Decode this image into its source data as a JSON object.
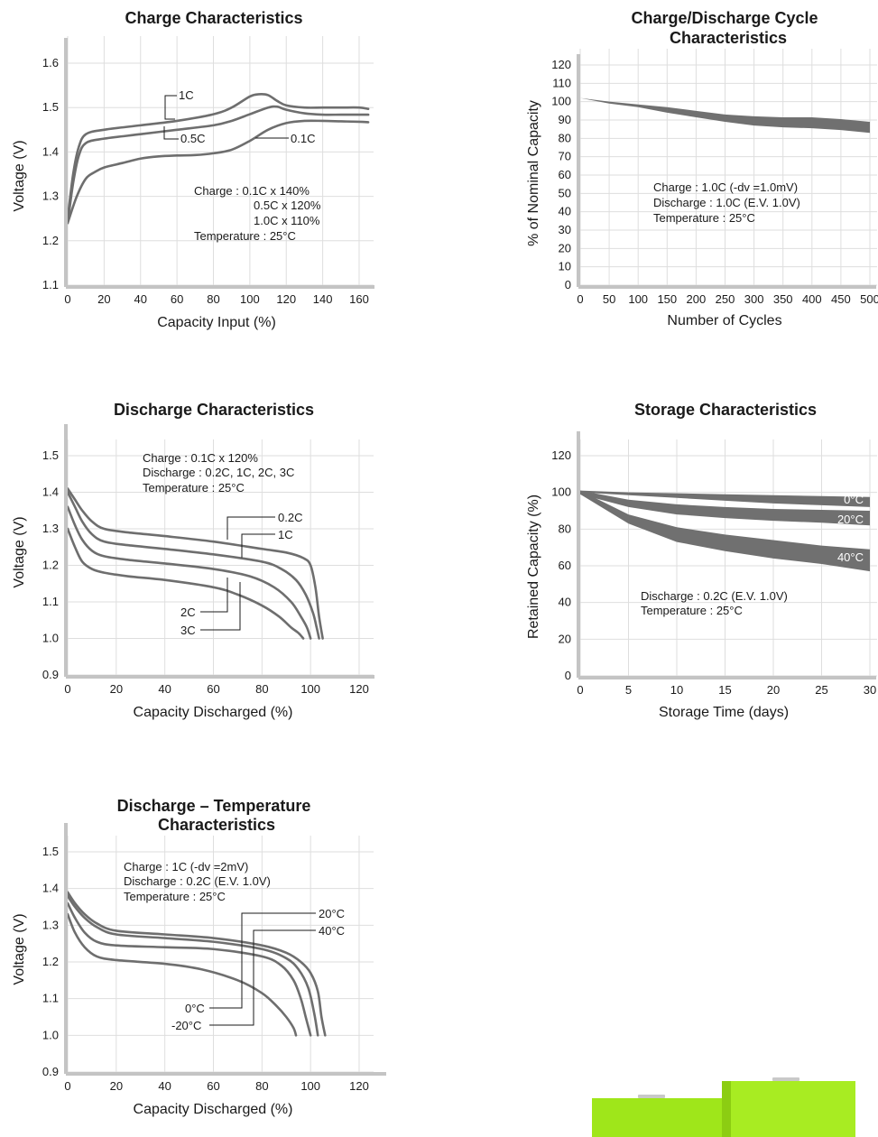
{
  "chart_data": [
    {
      "id": "charge",
      "type": "line",
      "title": [
        "Charge Characteristics"
      ],
      "xlabel": "Capacity Input (%)",
      "ylabel": "Voltage (V)",
      "xlim": [
        0,
        160
      ],
      "ylim": [
        1.1,
        1.6
      ],
      "xticks": [
        0,
        20,
        40,
        60,
        80,
        100,
        120,
        140,
        160
      ],
      "yticks": [
        1.1,
        1.2,
        1.3,
        1.4,
        1.5,
        1.6
      ],
      "xtick_labels": [
        "0",
        "20",
        "40",
        "60",
        "80",
        "100",
        "120",
        "140",
        "160"
      ],
      "ytick_labels": [
        "1.1",
        "1.2",
        "1.3",
        "1.4",
        "1.5",
        "1.6"
      ],
      "grid": true,
      "notes": [
        "Charge : 0.1C x 140%",
        "0.5C x 120%",
        "1.0C x 110%",
        "Temperature : 25°C"
      ],
      "series": [
        {
          "name": "1C",
          "x": [
            0,
            3,
            6,
            10,
            20,
            40,
            60,
            80,
            90,
            100,
            105,
            110,
            115,
            120,
            130,
            140,
            150,
            160,
            165
          ],
          "y": [
            1.25,
            1.35,
            1.41,
            1.44,
            1.45,
            1.46,
            1.47,
            1.485,
            1.5,
            1.525,
            1.53,
            1.528,
            1.515,
            1.505,
            1.5,
            1.5,
            1.5,
            1.5,
            1.497
          ]
        },
        {
          "name": "0.5C",
          "x": [
            0,
            3,
            6,
            10,
            20,
            40,
            60,
            80,
            90,
            100,
            110,
            115,
            120,
            130,
            140,
            150,
            160,
            165
          ],
          "y": [
            1.24,
            1.33,
            1.39,
            1.42,
            1.43,
            1.44,
            1.45,
            1.46,
            1.47,
            1.485,
            1.5,
            1.502,
            1.495,
            1.487,
            1.484,
            1.484,
            1.484,
            1.484
          ]
        },
        {
          "name": "0.1C",
          "x": [
            0,
            5,
            10,
            15,
            20,
            30,
            40,
            50,
            60,
            70,
            80,
            90,
            100,
            110,
            120,
            130,
            140,
            150,
            160,
            165
          ],
          "y": [
            1.24,
            1.3,
            1.34,
            1.355,
            1.365,
            1.375,
            1.385,
            1.39,
            1.392,
            1.393,
            1.397,
            1.405,
            1.425,
            1.45,
            1.465,
            1.47,
            1.47,
            1.469,
            1.468,
            1.467
          ]
        }
      ]
    },
    {
      "id": "cycle",
      "type": "area",
      "title": [
        "Charge/Discharge Cycle",
        "Characteristics"
      ],
      "xlabel": "Number of Cycles",
      "ylabel": "% of Nominal Capacity",
      "xlim": [
        0,
        500
      ],
      "ylim": [
        0,
        120
      ],
      "xticks": [
        0,
        50,
        100,
        150,
        200,
        250,
        300,
        350,
        400,
        450,
        500
      ],
      "yticks": [
        0,
        10,
        20,
        30,
        40,
        50,
        60,
        70,
        80,
        90,
        100,
        110,
        120
      ],
      "xtick_labels": [
        "0",
        "50",
        "100",
        "150",
        "200",
        "250",
        "300",
        "350",
        "400",
        "450",
        "500"
      ],
      "ytick_labels": [
        "0",
        "10",
        "20",
        "30",
        "40",
        "50",
        "60",
        "70",
        "80",
        "90",
        "100",
        "110",
        "120"
      ],
      "grid": true,
      "notes": [
        "Charge : 1.0C (-dv =1.0mV)",
        "Discharge : 1.0C (E.V. 1.0V)",
        "Temperature : 25°C"
      ],
      "series": [
        {
          "name": "",
          "x": [
            0,
            50,
            100,
            150,
            200,
            250,
            300,
            350,
            400,
            450,
            500
          ],
          "upper": [
            102,
            100,
            98.5,
            97,
            95,
            93,
            92,
            91.5,
            91.5,
            90.5,
            89
          ],
          "lower": [
            102,
            99,
            97,
            94,
            91.5,
            89,
            87,
            86,
            85.5,
            84.5,
            83
          ]
        }
      ]
    },
    {
      "id": "discharge",
      "type": "line",
      "title": [
        "Discharge Characteristics"
      ],
      "xlabel": "Capacity Discharged (%)",
      "ylabel": "Voltage (V)",
      "xlim": [
        0,
        120
      ],
      "ylim": [
        0.9,
        1.5
      ],
      "xticks": [
        0,
        20,
        40,
        60,
        80,
        100,
        120
      ],
      "yticks": [
        0.9,
        1.0,
        1.1,
        1.2,
        1.3,
        1.4,
        1.5
      ],
      "xtick_labels": [
        "0",
        "20",
        "40",
        "60",
        "80",
        "100",
        "120"
      ],
      "ytick_labels": [
        "0.9",
        "1.0",
        "1.1",
        "1.2",
        "1.3",
        "1.4",
        "1.5"
      ],
      "grid": true,
      "notes": [
        "Charge : 0.1C x 120%",
        "Discharge : 0.2C, 1C, 2C, 3C",
        "Temperature : 25°C"
      ],
      "series": [
        {
          "name": "0.2C",
          "x": [
            0,
            3,
            6,
            10,
            15,
            25,
            40,
            60,
            80,
            90,
            97,
            100,
            102,
            103.5,
            105
          ],
          "y": [
            1.41,
            1.38,
            1.35,
            1.32,
            1.3,
            1.29,
            1.28,
            1.265,
            1.245,
            1.235,
            1.22,
            1.2,
            1.14,
            1.06,
            1.0
          ]
        },
        {
          "name": "1C",
          "x": [
            0,
            3,
            6,
            10,
            15,
            25,
            40,
            60,
            80,
            88,
            94,
            98,
            101,
            102.5,
            103.5
          ],
          "y": [
            1.4,
            1.36,
            1.32,
            1.285,
            1.265,
            1.255,
            1.245,
            1.23,
            1.21,
            1.19,
            1.16,
            1.12,
            1.07,
            1.03,
            1.0
          ]
        },
        {
          "name": "2C",
          "x": [
            0,
            3,
            6,
            10,
            15,
            25,
            40,
            60,
            75,
            85,
            92,
            96,
            98.5,
            100
          ],
          "y": [
            1.36,
            1.31,
            1.27,
            1.24,
            1.225,
            1.215,
            1.205,
            1.19,
            1.17,
            1.14,
            1.1,
            1.06,
            1.03,
            1.0
          ]
        },
        {
          "name": "3C",
          "x": [
            0,
            3,
            6,
            10,
            15,
            25,
            40,
            60,
            70,
            80,
            87,
            92,
            95,
            97
          ],
          "y": [
            1.3,
            1.25,
            1.21,
            1.19,
            1.18,
            1.17,
            1.16,
            1.14,
            1.12,
            1.09,
            1.06,
            1.03,
            1.015,
            1.0
          ]
        }
      ]
    },
    {
      "id": "storage",
      "type": "area",
      "title": [
        "Storage Characteristics"
      ],
      "xlabel": "Storage Time (days)",
      "ylabel": "Retained Capacity (%)",
      "xlim": [
        0,
        30
      ],
      "ylim": [
        0,
        120
      ],
      "xticks": [
        0,
        5,
        10,
        15,
        20,
        25,
        30
      ],
      "yticks": [
        0,
        20,
        40,
        60,
        80,
        100,
        120
      ],
      "xtick_labels": [
        "0",
        "5",
        "10",
        "15",
        "20",
        "25",
        "30"
      ],
      "ytick_labels": [
        "0",
        "20",
        "40",
        "60",
        "80",
        "100",
        "120"
      ],
      "grid": true,
      "notes": [
        "Discharge : 0.2C (E.V. 1.0V)",
        "Temperature : 25°C"
      ],
      "series": [
        {
          "name": "0°C",
          "x": [
            0,
            5,
            10,
            15,
            20,
            25,
            30
          ],
          "upper": [
            101,
            100,
            99.5,
            99,
            98.5,
            98,
            97.5
          ],
          "lower": [
            100,
            98.5,
            97,
            95.5,
            94,
            93,
            92
          ]
        },
        {
          "name": "20°C",
          "x": [
            0,
            5,
            10,
            15,
            20,
            25,
            30
          ],
          "upper": [
            101,
            96,
            93.5,
            92,
            91,
            90.5,
            90
          ],
          "lower": [
            99,
            92,
            88,
            86,
            84.5,
            83.5,
            82
          ]
        },
        {
          "name": "40°C",
          "x": [
            0,
            5,
            10,
            15,
            20,
            25,
            30
          ],
          "upper": [
            101,
            88,
            81,
            77,
            74,
            71,
            69
          ],
          "lower": [
            99,
            83,
            73,
            68,
            64,
            61,
            57
          ]
        }
      ]
    },
    {
      "id": "temp",
      "type": "line",
      "title": [
        "Discharge – Temperature",
        "Characteristics"
      ],
      "xlabel": "Capacity Discharged (%)",
      "ylabel": "Voltage (V)",
      "xlim": [
        0,
        120
      ],
      "ylim": [
        0.9,
        1.5
      ],
      "xticks": [
        0,
        20,
        40,
        60,
        80,
        100,
        120
      ],
      "yticks": [
        0.9,
        1.0,
        1.1,
        1.2,
        1.3,
        1.4,
        1.5
      ],
      "xtick_labels": [
        "0",
        "20",
        "40",
        "60",
        "80",
        "100",
        "120"
      ],
      "ytick_labels": [
        "0.9",
        "1.0",
        "1.1",
        "1.2",
        "1.3",
        "1.4",
        "1.5"
      ],
      "grid": true,
      "notes": [
        "Charge : 1C (-dv =2mV)",
        "Discharge : 0.2C (E.V. 1.0V)",
        "Temperature : 25°C"
      ],
      "series": [
        {
          "name": "20°C",
          "x": [
            0,
            3,
            7,
            12,
            20,
            40,
            60,
            80,
            90,
            96,
            100,
            103,
            104.5,
            106
          ],
          "y": [
            1.39,
            1.36,
            1.33,
            1.305,
            1.285,
            1.275,
            1.265,
            1.245,
            1.225,
            1.2,
            1.17,
            1.12,
            1.05,
            1.0
          ]
        },
        {
          "name": "40°C",
          "x": [
            0,
            3,
            7,
            12,
            20,
            40,
            60,
            80,
            90,
            95,
            99,
            101.5,
            103
          ],
          "y": [
            1.38,
            1.35,
            1.32,
            1.295,
            1.275,
            1.265,
            1.255,
            1.235,
            1.21,
            1.18,
            1.13,
            1.06,
            1.0
          ]
        },
        {
          "name": "0°C",
          "x": [
            0,
            3,
            7,
            12,
            20,
            40,
            60,
            80,
            88,
            93,
            96,
            98,
            100
          ],
          "y": [
            1.36,
            1.32,
            1.28,
            1.255,
            1.245,
            1.24,
            1.235,
            1.215,
            1.19,
            1.15,
            1.1,
            1.05,
            1.0
          ]
        },
        {
          "name": "-20°C",
          "x": [
            0,
            3,
            7,
            12,
            20,
            40,
            55,
            70,
            80,
            86,
            90,
            93,
            94
          ],
          "y": [
            1.33,
            1.28,
            1.24,
            1.215,
            1.205,
            1.195,
            1.18,
            1.15,
            1.115,
            1.08,
            1.05,
            1.02,
            1.0
          ]
        }
      ]
    }
  ],
  "colors": {
    "curve": "#6e6e6e",
    "band": "#707070",
    "axis": "#c4c4c4",
    "grid": "#dedede",
    "battery": "#9fe61a"
  }
}
